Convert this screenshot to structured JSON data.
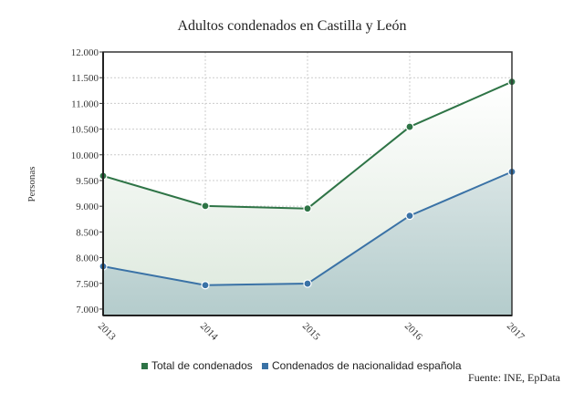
{
  "chart_data": {
    "type": "area",
    "title": "Adultos condenados en Castilla y León",
    "ylabel": "Personas",
    "xlabel": "",
    "categories": [
      "2013",
      "2014",
      "2015",
      "2016",
      "2017"
    ],
    "yticks": [
      7000,
      7500,
      8000,
      8500,
      9000,
      9500,
      10000,
      10500,
      11000,
      11500,
      12000
    ],
    "ytick_labels": [
      "7.000",
      "7.500",
      "8.000",
      "8.500",
      "9.000",
      "9.500",
      "10.000",
      "10.500",
      "11.000",
      "11.500",
      "12.000"
    ],
    "ylim": [
      6875,
      12000
    ],
    "grid": true,
    "legend_position": "bottom",
    "series": [
      {
        "name": "Total de condenados",
        "values": [
          9590,
          9005,
          8955,
          10545,
          11420
        ],
        "color": "#2e7446"
      },
      {
        "name": "Condenados de nacionalidad española",
        "values": [
          7830,
          7465,
          7495,
          8815,
          9670
        ],
        "color": "#3a72a6"
      }
    ],
    "source": "Fuente: INE, EpData"
  }
}
